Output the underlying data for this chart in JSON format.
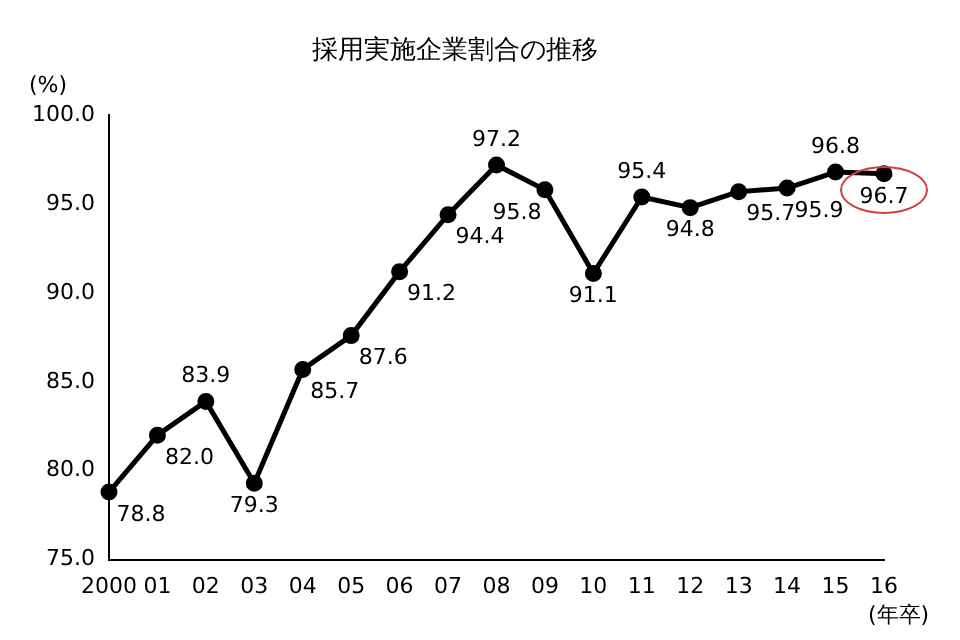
{
  "chart_data": {
    "type": "line",
    "title": "採用実施企業割合の推移",
    "ylabel": "(%)",
    "xlabel": "(年卒)",
    "categories": [
      "2000",
      "01",
      "02",
      "03",
      "04",
      "05",
      "06",
      "07",
      "08",
      "09",
      "10",
      "11",
      "12",
      "13",
      "14",
      "15",
      "16"
    ],
    "series": [
      {
        "color": "#000000",
        "values": [
          78.8,
          82.0,
          83.9,
          79.3,
          85.7,
          87.6,
          91.2,
          94.4,
          97.2,
          95.8,
          91.1,
          95.4,
          94.8,
          95.7,
          95.9,
          96.8,
          96.7
        ],
        "value_labels": [
          "78.8",
          "82.0",
          "83.9",
          "79.3",
          "85.7",
          "87.6",
          "91.2",
          "94.4",
          "97.2",
          "95.8",
          "91.1",
          "95.4",
          "94.8",
          "95.7",
          "95.9",
          "96.8",
          "96.7"
        ]
      }
    ],
    "ylim": [
      75,
      100
    ],
    "yticks": [
      {
        "value": 75,
        "label": "75.0"
      },
      {
        "value": 80,
        "label": "80.0"
      },
      {
        "value": 85,
        "label": "85.0"
      },
      {
        "value": 90,
        "label": "90.0"
      },
      {
        "value": 95,
        "label": "95.0"
      },
      {
        "value": 100,
        "label": "100.0"
      }
    ],
    "grid": false,
    "legend": false,
    "marker": "circle",
    "line_style": "solid"
  }
}
